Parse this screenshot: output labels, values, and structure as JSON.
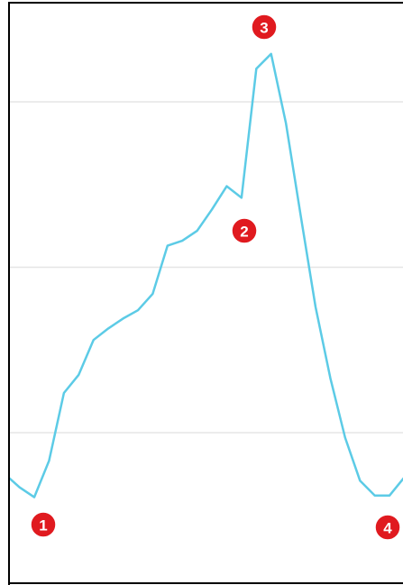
{
  "chart_data": {
    "type": "line",
    "values": [
      0.75,
      0.67,
      0.61,
      0.83,
      1.24,
      1.35,
      1.56,
      1.63,
      1.69,
      1.74,
      1.84,
      2.13,
      2.16,
      2.22,
      2.35,
      2.49,
      2.42,
      3.2,
      3.29,
      2.87,
      2.31,
      1.76,
      1.33,
      0.97,
      0.71,
      0.62,
      0.62,
      0.73
    ],
    "color": "#5ccbe6",
    "ylim": [
      0,
      3.6
    ],
    "yticks": [
      1,
      2,
      3
    ],
    "grid": true,
    "annotations": [
      "1",
      "2",
      "3",
      "4"
    ]
  }
}
